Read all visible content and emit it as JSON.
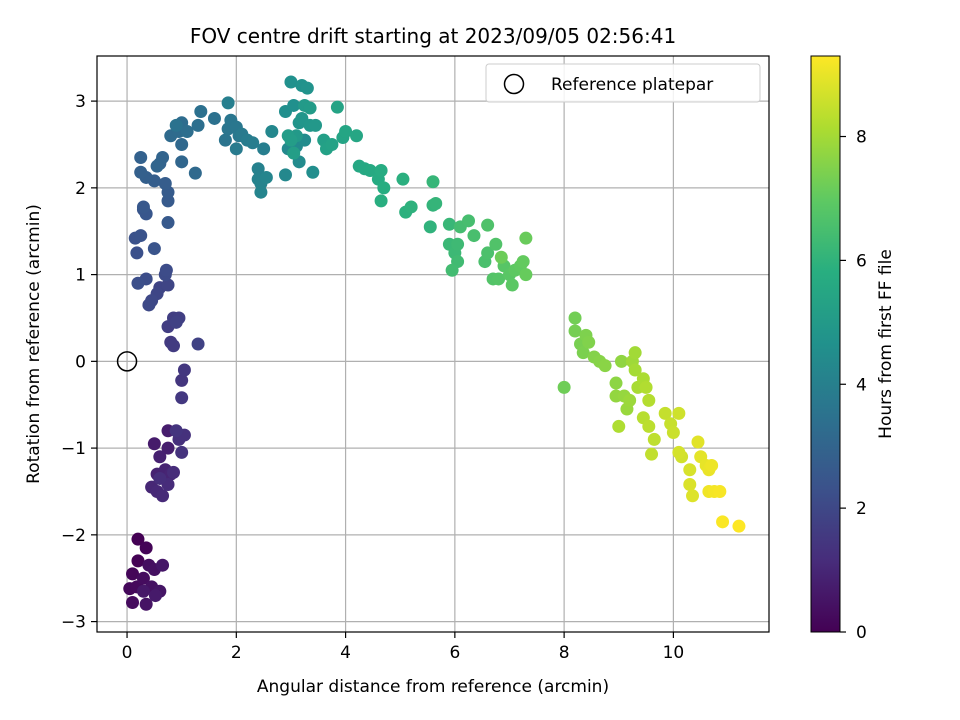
{
  "chart_data": {
    "type": "scatter",
    "title": "FOV centre drift starting at 2023/09/05 02:56:41",
    "xlabel": "Angular distance from reference (arcmin)",
    "ylabel": "Rotation from reference (arcmin)",
    "xlim": [
      -0.55,
      11.75
    ],
    "ylim": [
      -3.12,
      3.52
    ],
    "x_ticks": [
      0,
      2,
      4,
      6,
      8,
      10
    ],
    "y_ticks": [
      -3,
      -2,
      -1,
      0,
      1,
      2,
      3
    ],
    "x_tick_labels": [
      "0",
      "2",
      "4",
      "6",
      "8",
      "10"
    ],
    "y_tick_labels": [
      "−3",
      "−2",
      "−1",
      "0",
      "1",
      "2",
      "3"
    ],
    "grid": true,
    "legend": {
      "position": "top-right",
      "entries": [
        {
          "label": "Reference platepar",
          "marker": "open-circle"
        }
      ]
    },
    "reference_point": {
      "x": 0,
      "y": 0
    },
    "colorbar": {
      "label": "Hours from first FF file",
      "colormap": "viridis",
      "range": [
        0,
        9.3
      ],
      "ticks": [
        0,
        2,
        4,
        6,
        8
      ],
      "tick_labels": [
        "0",
        "2",
        "4",
        "6",
        "8"
      ]
    },
    "points": [
      [
        0.2,
        -2.05
      ],
      [
        0.2,
        -2.3
      ],
      [
        0.35,
        -2.15
      ],
      [
        0.1,
        -2.45
      ],
      [
        0.05,
        -2.62
      ],
      [
        0.18,
        -2.6
      ],
      [
        0.1,
        -2.78
      ],
      [
        0.3,
        -2.5
      ],
      [
        0.4,
        -2.35
      ],
      [
        0.5,
        -2.4
      ],
      [
        0.45,
        -2.6
      ],
      [
        0.35,
        -2.8
      ],
      [
        0.6,
        -2.65
      ],
      [
        0.65,
        -2.35
      ],
      [
        0.3,
        -2.65
      ],
      [
        0.52,
        -2.7
      ],
      [
        0.5,
        -0.95
      ],
      [
        0.75,
        -0.8
      ],
      [
        0.75,
        -1.0
      ],
      [
        0.6,
        -1.1
      ],
      [
        0.55,
        -1.3
      ],
      [
        0.7,
        -1.25
      ],
      [
        0.8,
        -1.3
      ],
      [
        0.45,
        -1.45
      ],
      [
        0.55,
        -1.5
      ],
      [
        0.65,
        -1.55
      ],
      [
        0.75,
        -1.42
      ],
      [
        0.85,
        -1.28
      ],
      [
        0.6,
        -1.35
      ],
      [
        0.95,
        -0.9
      ],
      [
        1.05,
        -0.85
      ],
      [
        1.0,
        -1.05
      ],
      [
        0.9,
        -0.8
      ],
      [
        1.0,
        -0.22
      ],
      [
        1.05,
        -0.1
      ],
      [
        1.0,
        -0.42
      ],
      [
        0.8,
        0.22
      ],
      [
        0.85,
        0.18
      ],
      [
        0.75,
        0.4
      ],
      [
        0.85,
        0.5
      ],
      [
        0.95,
        0.5
      ],
      [
        0.9,
        0.45
      ],
      [
        1.3,
        0.2
      ],
      [
        0.6,
        0.85
      ],
      [
        0.75,
        0.88
      ],
      [
        0.55,
        0.78
      ],
      [
        0.45,
        0.7
      ],
      [
        0.4,
        0.65
      ],
      [
        0.7,
        1.0
      ],
      [
        0.72,
        1.05
      ],
      [
        0.35,
        0.95
      ],
      [
        0.2,
        0.9
      ],
      [
        0.18,
        1.25
      ],
      [
        0.15,
        1.42
      ],
      [
        0.25,
        1.45
      ],
      [
        0.5,
        1.3
      ],
      [
        0.3,
        1.75
      ],
      [
        0.35,
        1.7
      ],
      [
        0.3,
        1.78
      ],
      [
        0.75,
        1.6
      ],
      [
        0.75,
        1.85
      ],
      [
        0.75,
        1.95
      ],
      [
        0.7,
        2.05
      ],
      [
        0.5,
        2.08
      ],
      [
        0.35,
        2.12
      ],
      [
        0.25,
        2.18
      ],
      [
        0.25,
        2.35
      ],
      [
        0.6,
        2.28
      ],
      [
        0.65,
        2.35
      ],
      [
        0.55,
        2.25
      ],
      [
        1.0,
        2.3
      ],
      [
        1.0,
        2.5
      ],
      [
        1.25,
        2.17
      ],
      [
        0.8,
        2.6
      ],
      [
        0.95,
        2.65
      ],
      [
        1.0,
        2.75
      ],
      [
        1.1,
        2.65
      ],
      [
        1.3,
        2.72
      ],
      [
        1.35,
        2.88
      ],
      [
        1.6,
        2.8
      ],
      [
        0.9,
        2.72
      ],
      [
        1.8,
        2.55
      ],
      [
        1.85,
        2.68
      ],
      [
        1.9,
        2.78
      ],
      [
        2.0,
        2.7
      ],
      [
        2.05,
        2.6
      ],
      [
        2.1,
        2.62
      ],
      [
        2.0,
        2.45
      ],
      [
        2.2,
        2.55
      ],
      [
        2.3,
        2.52
      ],
      [
        2.5,
        2.45
      ],
      [
        1.85,
        2.98
      ],
      [
        2.4,
        2.22
      ],
      [
        2.4,
        2.1
      ],
      [
        2.45,
        2.05
      ],
      [
        2.45,
        1.95
      ],
      [
        2.55,
        2.12
      ],
      [
        2.65,
        2.65
      ],
      [
        2.9,
        2.15
      ],
      [
        2.95,
        2.45
      ],
      [
        3.1,
        2.48
      ],
      [
        3.15,
        2.3
      ],
      [
        3.25,
        2.55
      ],
      [
        3.4,
        2.18
      ],
      [
        2.9,
        2.88
      ],
      [
        3.05,
        2.95
      ],
      [
        3.0,
        3.22
      ],
      [
        3.2,
        3.18
      ],
      [
        3.3,
        3.15
      ],
      [
        3.15,
        2.75
      ],
      [
        3.2,
        2.8
      ],
      [
        3.35,
        2.72
      ],
      [
        3.45,
        2.72
      ],
      [
        3.1,
        2.6
      ],
      [
        3.25,
        2.95
      ],
      [
        3.35,
        2.92
      ],
      [
        2.95,
        2.6
      ],
      [
        3.0,
        2.55
      ],
      [
        3.05,
        2.4
      ],
      [
        3.6,
        2.55
      ],
      [
        3.65,
        2.45
      ],
      [
        3.75,
        2.5
      ],
      [
        3.85,
        2.93
      ],
      [
        3.95,
        2.58
      ],
      [
        4.0,
        2.65
      ],
      [
        4.2,
        2.6
      ],
      [
        4.25,
        2.25
      ],
      [
        4.35,
        2.22
      ],
      [
        4.45,
        2.2
      ],
      [
        4.6,
        2.1
      ],
      [
        4.65,
        2.2
      ],
      [
        4.7,
        2.0
      ],
      [
        4.65,
        1.85
      ],
      [
        5.05,
        2.1
      ],
      [
        5.1,
        1.72
      ],
      [
        5.2,
        1.78
      ],
      [
        5.55,
        1.55
      ],
      [
        5.6,
        1.8
      ],
      [
        5.65,
        1.82
      ],
      [
        5.6,
        2.07
      ],
      [
        5.9,
        1.58
      ],
      [
        5.9,
        1.35
      ],
      [
        6.0,
        1.25
      ],
      [
        6.05,
        1.35
      ],
      [
        6.05,
        1.15
      ],
      [
        5.95,
        1.05
      ],
      [
        6.1,
        1.55
      ],
      [
        6.25,
        1.62
      ],
      [
        6.35,
        1.45
      ],
      [
        6.55,
        1.15
      ],
      [
        6.6,
        1.25
      ],
      [
        6.6,
        1.57
      ],
      [
        6.75,
        1.35
      ],
      [
        6.7,
        0.95
      ],
      [
        6.8,
        0.95
      ],
      [
        6.9,
        1.1
      ],
      [
        7.0,
        1.0
      ],
      [
        7.05,
        0.88
      ],
      [
        7.1,
        1.05
      ],
      [
        7.2,
        1.1
      ],
      [
        7.25,
        1.15
      ],
      [
        7.3,
        1.0
      ],
      [
        7.3,
        1.42
      ],
      [
        6.85,
        1.2
      ],
      [
        8.0,
        -0.3
      ],
      [
        8.2,
        0.5
      ],
      [
        8.2,
        0.35
      ],
      [
        8.3,
        0.2
      ],
      [
        8.35,
        0.1
      ],
      [
        8.4,
        0.3
      ],
      [
        8.45,
        0.22
      ],
      [
        8.55,
        0.05
      ],
      [
        8.65,
        0.0
      ],
      [
        8.75,
        -0.05
      ],
      [
        8.95,
        -0.25
      ],
      [
        9.05,
        0.0
      ],
      [
        8.95,
        -0.4
      ],
      [
        9.1,
        -0.4
      ],
      [
        9.15,
        -0.55
      ],
      [
        9.2,
        -0.45
      ],
      [
        9.25,
        0.0
      ],
      [
        9.3,
        0.1
      ],
      [
        9.3,
        -0.1
      ],
      [
        9.35,
        -0.3
      ],
      [
        9.45,
        -0.2
      ],
      [
        9.0,
        -0.75
      ],
      [
        9.5,
        -0.3
      ],
      [
        9.55,
        -0.45
      ],
      [
        9.45,
        -0.65
      ],
      [
        9.55,
        -0.75
      ],
      [
        9.65,
        -0.9
      ],
      [
        9.6,
        -1.07
      ],
      [
        9.85,
        -0.6
      ],
      [
        9.95,
        -0.72
      ],
      [
        10.0,
        -0.82
      ],
      [
        10.1,
        -0.6
      ],
      [
        10.15,
        -1.1
      ],
      [
        10.1,
        -1.05
      ],
      [
        10.3,
        -1.25
      ],
      [
        10.3,
        -1.42
      ],
      [
        10.35,
        -1.55
      ],
      [
        10.45,
        -0.93
      ],
      [
        10.5,
        -1.1
      ],
      [
        10.6,
        -1.2
      ],
      [
        10.65,
        -1.25
      ],
      [
        10.7,
        -1.2
      ],
      [
        10.65,
        -1.5
      ],
      [
        10.75,
        -1.5
      ],
      [
        10.85,
        -1.5
      ],
      [
        10.9,
        -1.85
      ],
      [
        11.2,
        -1.9
      ]
    ]
  }
}
